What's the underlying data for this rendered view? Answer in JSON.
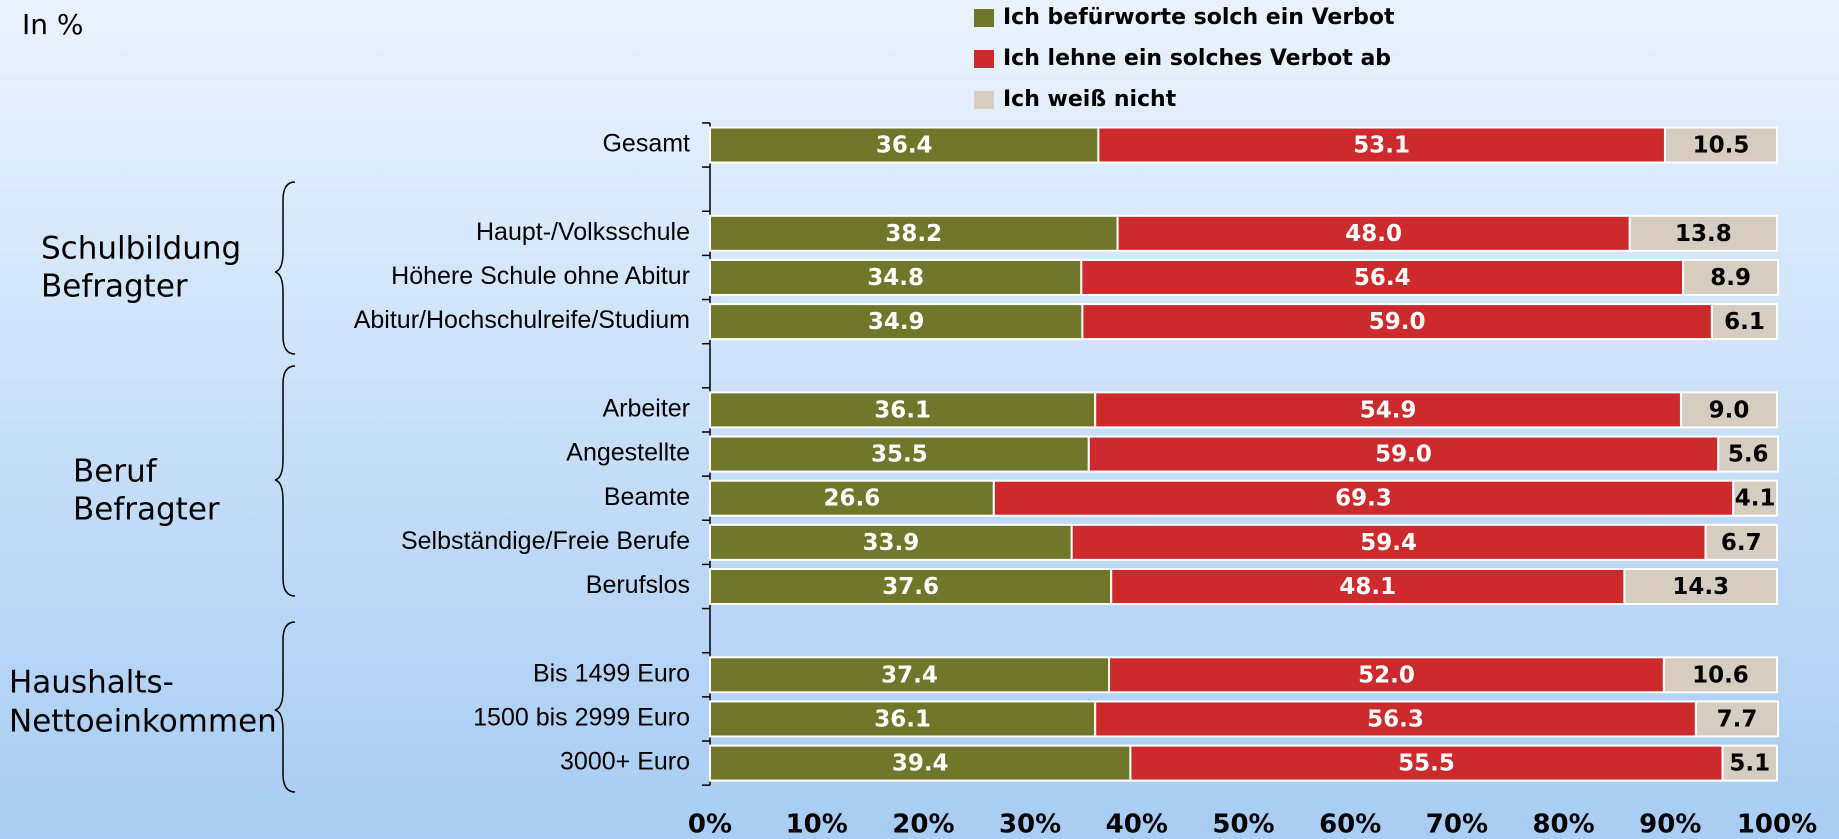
{
  "chart_data": {
    "type": "stacked-bar-horizontal",
    "unit_note": "In %",
    "categories": [
      "Gesamt",
      null,
      "Haupt-/Volksschule",
      "Höhere Schule ohne Abitur",
      "Abitur/Hochschulreife/Studium",
      null,
      "Arbeiter",
      "Angestellte",
      "Beamte",
      "Selbständige/Freie Berufe",
      "Berufslos",
      null,
      "Bis 1499 Euro",
      "1500 bis 2999 Euro",
      "3000+ Euro"
    ],
    "series": [
      {
        "name": "Ich befürworte solch ein Verbot",
        "color": "#71772a",
        "values": [
          36.4,
          null,
          38.2,
          34.8,
          34.9,
          null,
          36.1,
          35.5,
          26.6,
          33.9,
          37.6,
          null,
          37.4,
          36.1,
          39.4
        ],
        "value_labels": [
          "36.4",
          null,
          "38.2",
          "34.8",
          "34.9",
          null,
          "36.1",
          "35.5",
          "26.6",
          "33.9",
          "37.6",
          null,
          "37.4",
          "36.1",
          "39.4"
        ]
      },
      {
        "name": "Ich lehne ein solches Verbot ab",
        "color": "#cc2a2c",
        "values": [
          53.1,
          null,
          48.0,
          56.4,
          59.0,
          null,
          54.9,
          59.0,
          69.3,
          59.4,
          48.1,
          null,
          52.0,
          56.3,
          55.5
        ],
        "value_labels": [
          "53.1",
          null,
          "48.0",
          "56.4",
          "59.0",
          null,
          "54.9",
          "59.0",
          "69.3",
          "59.4",
          "48.1",
          null,
          "52.0",
          "56.3",
          "55.5"
        ]
      },
      {
        "name": "Ich weiß nicht",
        "color": "#d6cdc0",
        "values": [
          10.5,
          null,
          13.8,
          8.9,
          6.1,
          null,
          9.0,
          5.6,
          4.1,
          6.7,
          14.3,
          null,
          10.6,
          7.7,
          5.1
        ],
        "value_labels": [
          "10.5",
          null,
          "13.8",
          "8.9",
          "6.1",
          null,
          "9.0",
          "5.6",
          "4.1",
          "6.7",
          "14.3",
          null,
          "10.6",
          "7.7",
          "5.1"
        ]
      }
    ],
    "groups": [
      {
        "label_lines": [
          "Schulbildung",
          "Befragter"
        ]
      },
      {
        "label_lines": [
          "Beruf",
          "Befragter"
        ]
      },
      {
        "label_lines": [
          "Haushalts-",
          "Nettoeinkommen"
        ]
      }
    ],
    "xlim": [
      0,
      100
    ],
    "xticks": [
      {
        "value": 0,
        "label": "0%"
      },
      {
        "value": 10,
        "label": "10%"
      },
      {
        "value": 20,
        "label": "20%"
      },
      {
        "value": 30,
        "label": "30%"
      },
      {
        "value": 40,
        "label": "40%"
      },
      {
        "value": 50,
        "label": "50%"
      },
      {
        "value": 60,
        "label": "60%"
      },
      {
        "value": 70,
        "label": "70%"
      },
      {
        "value": 80,
        "label": "80%"
      },
      {
        "value": 90,
        "label": "90%"
      },
      {
        "value": 100,
        "label": "100%"
      }
    ]
  }
}
